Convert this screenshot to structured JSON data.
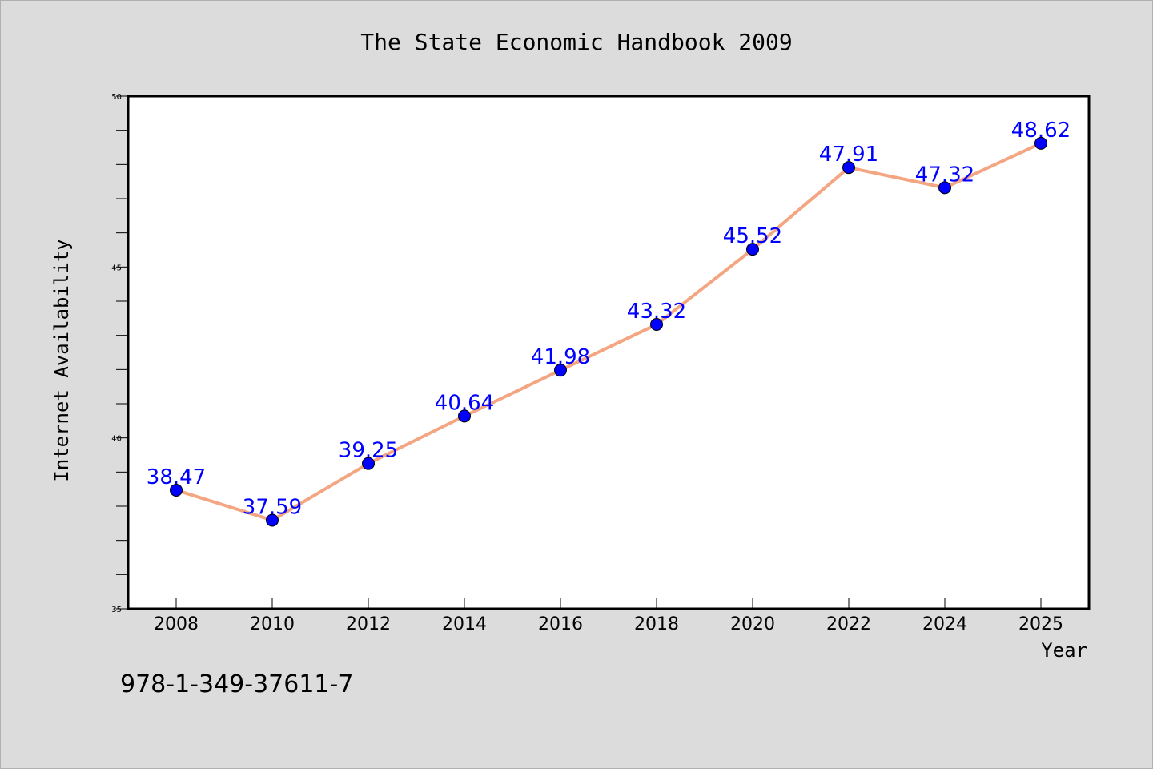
{
  "chart_data": {
    "type": "line",
    "title": "The State Economic Handbook 2009",
    "xlabel": "Year",
    "ylabel": "Internet Availability",
    "x": [
      "2008",
      "2010",
      "2012",
      "2014",
      "2016",
      "2018",
      "2020",
      "2022",
      "2024",
      "2025"
    ],
    "series": [
      {
        "values": [
          38.47,
          37.59,
          39.25,
          40.64,
          41.98,
          43.32,
          45.52,
          47.91,
          47.32,
          48.62
        ]
      }
    ],
    "data_labels": [
      "38.47",
      "37.59",
      "39.25",
      "40.64",
      "41.98",
      "43.32",
      "45.52",
      "47.91",
      "47.32",
      "48.62"
    ],
    "ylim": [
      35,
      50
    ],
    "y_ticks": [
      "35",
      "40",
      "45",
      "50"
    ],
    "grid": false,
    "colors": {
      "line": "#f4a582",
      "marker": "#0000ff",
      "label": "#0000ff",
      "background": "#dcdcdc",
      "plot_bg": "#ffffff"
    }
  },
  "footer": {
    "isbn": "978-1-349-37611-7"
  }
}
